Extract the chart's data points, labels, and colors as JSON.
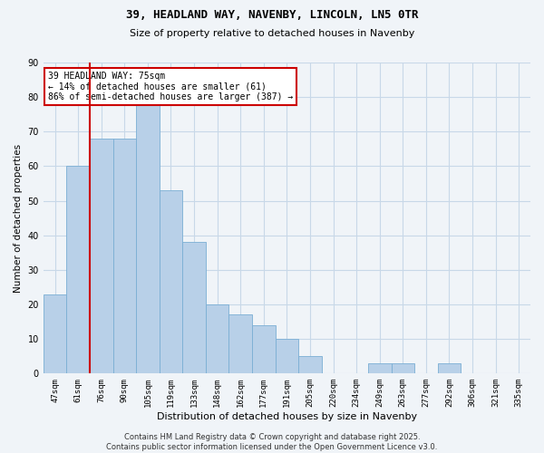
{
  "title": "39, HEADLAND WAY, NAVENBY, LINCOLN, LN5 0TR",
  "subtitle": "Size of property relative to detached houses in Navenby",
  "xlabel": "Distribution of detached houses by size in Navenby",
  "ylabel": "Number of detached properties",
  "categories": [
    "47sqm",
    "61sqm",
    "76sqm",
    "90sqm",
    "105sqm",
    "119sqm",
    "133sqm",
    "148sqm",
    "162sqm",
    "177sqm",
    "191sqm",
    "205sqm",
    "220sqm",
    "234sqm",
    "249sqm",
    "263sqm",
    "277sqm",
    "292sqm",
    "306sqm",
    "321sqm",
    "335sqm"
  ],
  "values": [
    23,
    60,
    68,
    68,
    80,
    53,
    38,
    20,
    17,
    14,
    10,
    5,
    0,
    0,
    3,
    3,
    0,
    3,
    0,
    0,
    0
  ],
  "bar_color": "#b8d0e8",
  "bar_edge_color": "#7aaed4",
  "annotation_text": "39 HEADLAND WAY: 75sqm\n← 14% of detached houses are smaller (61)\n86% of semi-detached houses are larger (387) →",
  "annotation_box_color": "#ffffff",
  "annotation_border_color": "#cc0000",
  "red_line_color": "#cc0000",
  "background_color": "#f0f4f8",
  "grid_color": "#c8d8e8",
  "footer_text": "Contains HM Land Registry data © Crown copyright and database right 2025.\nContains public sector information licensed under the Open Government Licence v3.0.",
  "ylim": [
    0,
    90
  ],
  "yticks": [
    0,
    10,
    20,
    30,
    40,
    50,
    60,
    70,
    80,
    90
  ],
  "title_fontsize": 9,
  "subtitle_fontsize": 8
}
